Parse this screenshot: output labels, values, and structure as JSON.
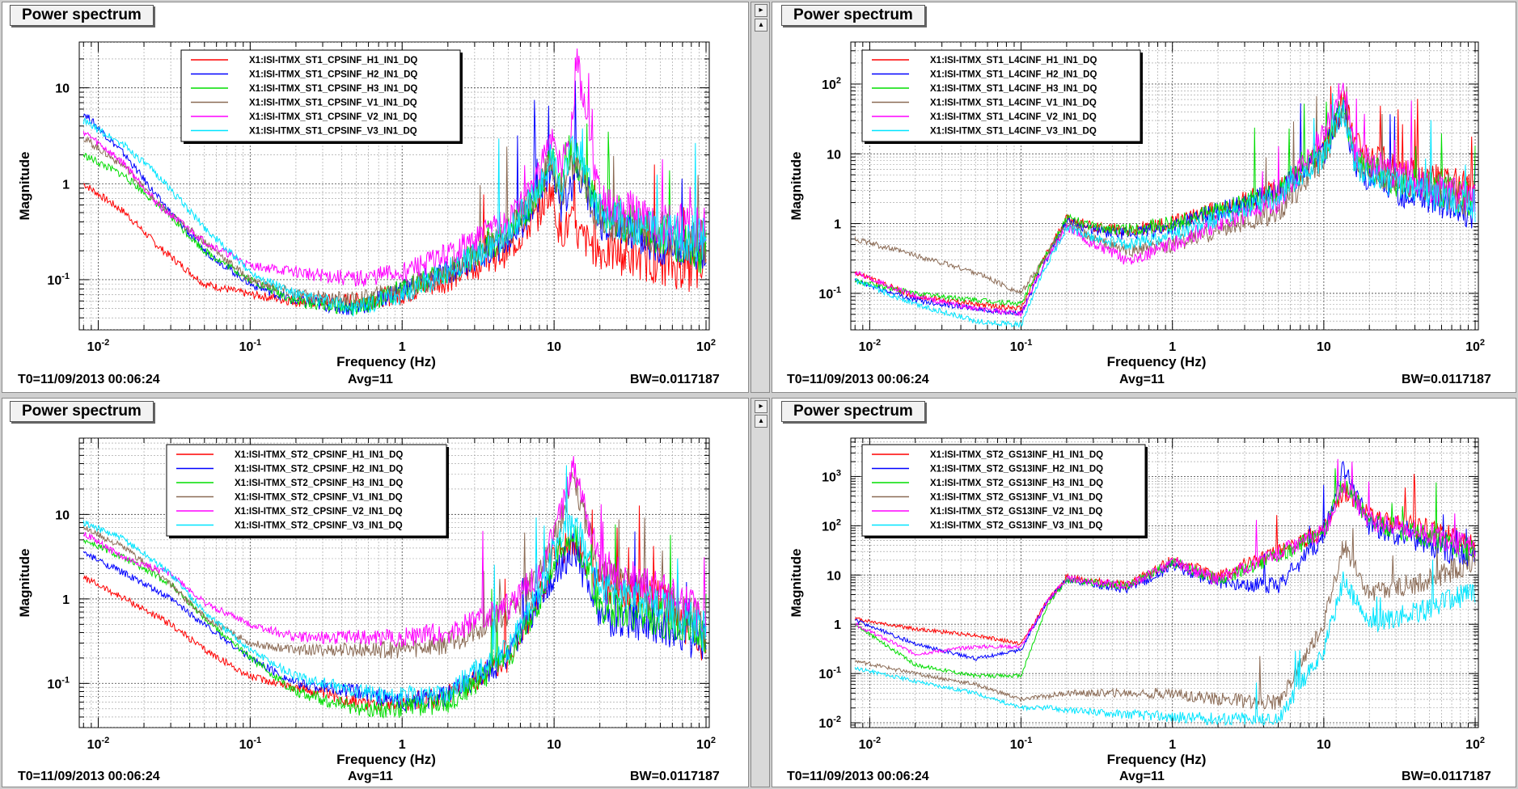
{
  "colors": {
    "red": "#ff0000",
    "blue": "#0000ff",
    "green": "#00dd00",
    "brown": "#8b6b55",
    "magenta": "#ff00ff",
    "cyan": "#00e5ff"
  },
  "common": {
    "x_label": "Frequency (Hz)",
    "y_label": "Magnitude",
    "t0": "T0=11/09/2013 00:06:24",
    "avg": "Avg=11",
    "bw": "BW=0.0117187"
  },
  "split_icons": [
    "arrow-right-icon",
    "arrow-up-icon"
  ],
  "chart_data": [
    {
      "type": "line",
      "title": "Power spectrum",
      "xscale": "log",
      "yscale": "log",
      "xlim": [
        0.0075,
        105
      ],
      "ylim": [
        0.03,
        30
      ],
      "xticks": [
        "10^-2",
        "10^-1",
        "1",
        "10",
        "10^2"
      ],
      "yticks": [
        "10^-1",
        "1",
        "10"
      ],
      "legend": "top-center",
      "series": [
        {
          "name": "X1:ISI-ITMX_ST1_CPSINF_H1_IN1_DQ",
          "color": "red",
          "x": [
            0.008,
            0.015,
            0.025,
            0.05,
            0.1,
            0.2,
            0.5,
            1,
            2,
            5,
            8,
            9.5,
            11,
            13,
            14,
            20,
            50,
            100
          ],
          "y": [
            1.0,
            0.5,
            0.22,
            0.09,
            0.07,
            0.06,
            0.06,
            0.07,
            0.1,
            0.2,
            0.5,
            0.9,
            0.3,
            0.4,
            0.3,
            0.2,
            0.15,
            0.12
          ]
        },
        {
          "name": "X1:ISI-ITMX_ST1_CPSINF_H2_IN1_DQ",
          "color": "blue",
          "x": [
            0.008,
            0.015,
            0.025,
            0.05,
            0.1,
            0.2,
            0.5,
            1,
            2,
            5,
            8,
            9.5,
            11,
            13,
            14,
            20,
            50,
            100
          ],
          "y": [
            5.5,
            2.0,
            0.7,
            0.2,
            0.09,
            0.06,
            0.05,
            0.08,
            0.12,
            0.25,
            0.7,
            1.6,
            0.6,
            1.0,
            1.5,
            0.4,
            0.25,
            0.2
          ]
        },
        {
          "name": "X1:ISI-ITMX_ST1_CPSINF_H3_IN1_DQ",
          "color": "green",
          "x": [
            0.008,
            0.015,
            0.025,
            0.05,
            0.1,
            0.2,
            0.5,
            1,
            2,
            5,
            8,
            9.5,
            11,
            13,
            14,
            20,
            50,
            100
          ],
          "y": [
            2.0,
            1.2,
            0.6,
            0.2,
            0.1,
            0.06,
            0.05,
            0.08,
            0.12,
            0.3,
            0.8,
            2.0,
            0.8,
            2.5,
            1.8,
            0.5,
            0.3,
            0.2
          ]
        },
        {
          "name": "X1:ISI-ITMX_ST1_CPSINF_V1_IN1_DQ",
          "color": "brown",
          "x": [
            0.008,
            0.015,
            0.025,
            0.05,
            0.1,
            0.2,
            0.5,
            1,
            2,
            5,
            8,
            9.5,
            11,
            13,
            14,
            20,
            50,
            100
          ],
          "y": [
            3.0,
            1.5,
            0.6,
            0.25,
            0.1,
            0.07,
            0.06,
            0.08,
            0.12,
            0.3,
            0.9,
            1.8,
            0.7,
            1.5,
            2.0,
            0.4,
            0.3,
            0.25
          ]
        },
        {
          "name": "X1:ISI-ITMX_ST1_CPSINF_V2_IN1_DQ",
          "color": "magenta",
          "x": [
            0.008,
            0.015,
            0.025,
            0.05,
            0.1,
            0.2,
            0.5,
            1,
            2,
            5,
            8,
            9.5,
            11,
            13,
            14,
            20,
            50,
            100
          ],
          "y": [
            3.5,
            1.6,
            0.6,
            0.25,
            0.14,
            0.12,
            0.1,
            0.12,
            0.18,
            0.4,
            1.2,
            3.0,
            1.5,
            3.5,
            20,
            0.7,
            0.4,
            0.3
          ]
        },
        {
          "name": "X1:ISI-ITMX_ST1_CPSINF_V3_IN1_DQ",
          "color": "cyan",
          "x": [
            0.008,
            0.015,
            0.025,
            0.05,
            0.1,
            0.2,
            0.5,
            1,
            2,
            5,
            8,
            9.5,
            11,
            13,
            14,
            20,
            50,
            100
          ],
          "y": [
            4.5,
            2.5,
            1.2,
            0.35,
            0.12,
            0.07,
            0.05,
            0.07,
            0.12,
            0.3,
            0.9,
            2.0,
            0.8,
            2.0,
            2.5,
            0.5,
            0.3,
            0.25
          ]
        }
      ]
    },
    {
      "type": "line",
      "title": "Power spectrum",
      "xscale": "log",
      "yscale": "log",
      "xlim": [
        0.0075,
        105
      ],
      "ylim": [
        0.03,
        400
      ],
      "xticks": [
        "10^-2",
        "10^-1",
        "1",
        "10",
        "10^2"
      ],
      "yticks": [
        "10^-1",
        "1",
        "10",
        "10^2"
      ],
      "legend": "top-center",
      "series": [
        {
          "name": "X1:ISI-ITMX_ST1_L4CINF_H1_IN1_DQ",
          "color": "red",
          "x": [
            0.008,
            0.02,
            0.05,
            0.1,
            0.14,
            0.2,
            0.3,
            0.5,
            1,
            2,
            5,
            10,
            13.5,
            16,
            30,
            60,
            100
          ],
          "y": [
            0.2,
            0.09,
            0.07,
            0.06,
            0.3,
            1.2,
            0.9,
            0.8,
            1.0,
            1.6,
            3.0,
            12,
            60,
            15,
            6,
            4,
            3
          ]
        },
        {
          "name": "X1:ISI-ITMX_ST1_L4CINF_H2_IN1_DQ",
          "color": "blue",
          "x": [
            0.008,
            0.02,
            0.05,
            0.1,
            0.14,
            0.2,
            0.3,
            0.5,
            1,
            2,
            5,
            10,
            13.5,
            16,
            30,
            60,
            100
          ],
          "y": [
            0.15,
            0.08,
            0.06,
            0.05,
            0.25,
            1.1,
            0.8,
            0.7,
            0.9,
            1.5,
            2.8,
            10,
            50,
            6,
            3,
            2,
            1.5
          ]
        },
        {
          "name": "X1:ISI-ITMX_ST1_L4CINF_H3_IN1_DQ",
          "color": "green",
          "x": [
            0.008,
            0.02,
            0.05,
            0.1,
            0.14,
            0.2,
            0.3,
            0.5,
            1,
            2,
            5,
            10,
            13.5,
            16,
            30,
            60,
            100
          ],
          "y": [
            0.15,
            0.1,
            0.08,
            0.07,
            0.3,
            1.2,
            0.9,
            0.8,
            1.0,
            1.5,
            2.8,
            11,
            55,
            8,
            4,
            3,
            2
          ]
        },
        {
          "name": "X1:ISI-ITMX_ST1_L4CINF_V1_IN1_DQ",
          "color": "brown",
          "x": [
            0.008,
            0.02,
            0.05,
            0.1,
            0.14,
            0.2,
            0.3,
            0.5,
            1,
            2,
            5,
            10,
            13.5,
            16,
            30,
            60,
            100
          ],
          "y": [
            0.6,
            0.35,
            0.2,
            0.1,
            0.3,
            1.0,
            0.6,
            0.4,
            0.5,
            0.8,
            1.5,
            8,
            40,
            8,
            4,
            3,
            2
          ]
        },
        {
          "name": "X1:ISI-ITMX_ST1_L4CINF_V2_IN1_DQ",
          "color": "magenta",
          "x": [
            0.008,
            0.02,
            0.05,
            0.1,
            0.14,
            0.2,
            0.3,
            0.5,
            1,
            2,
            5,
            10,
            13.5,
            16,
            30,
            60,
            100
          ],
          "y": [
            0.2,
            0.09,
            0.06,
            0.05,
            0.25,
            0.9,
            0.5,
            0.3,
            0.5,
            1.0,
            2.0,
            20,
            100,
            10,
            5,
            3,
            2
          ]
        },
        {
          "name": "X1:ISI-ITMX_ST1_L4CINF_V3_IN1_DQ",
          "color": "cyan",
          "x": [
            0.008,
            0.02,
            0.05,
            0.1,
            0.14,
            0.2,
            0.3,
            0.5,
            1,
            2,
            5,
            10,
            13.5,
            16,
            30,
            60,
            100
          ],
          "y": [
            0.15,
            0.07,
            0.04,
            0.035,
            0.2,
            0.9,
            0.6,
            0.5,
            0.7,
            1.2,
            2.5,
            9,
            45,
            7,
            3.5,
            2.5,
            1.8
          ]
        }
      ]
    },
    {
      "type": "line",
      "title": "Power spectrum",
      "xscale": "log",
      "yscale": "log",
      "xlim": [
        0.0075,
        105
      ],
      "ylim": [
        0.03,
        80
      ],
      "xticks": [
        "10^-2",
        "10^-1",
        "1",
        "10",
        "10^2"
      ],
      "yticks": [
        "10^-1",
        "1",
        "10"
      ],
      "legend": "top-center",
      "series": [
        {
          "name": "X1:ISI-ITMX_ST2_CPSINF_H1_IN1_DQ",
          "color": "red",
          "x": [
            0.008,
            0.015,
            0.03,
            0.05,
            0.1,
            0.2,
            0.5,
            1,
            2,
            5,
            8,
            10,
            13.5,
            20,
            50,
            100
          ],
          "y": [
            1.8,
            1.0,
            0.5,
            0.25,
            0.12,
            0.09,
            0.06,
            0.06,
            0.07,
            0.2,
            1.0,
            3.0,
            5.0,
            1.5,
            1.0,
            0.3
          ]
        },
        {
          "name": "X1:ISI-ITMX_ST2_CPSINF_H2_IN1_DQ",
          "color": "blue",
          "x": [
            0.008,
            0.015,
            0.03,
            0.05,
            0.1,
            0.2,
            0.5,
            1,
            2,
            5,
            8,
            10,
            13.5,
            20,
            50,
            100
          ],
          "y": [
            3.5,
            2.0,
            1.0,
            0.5,
            0.2,
            0.1,
            0.08,
            0.06,
            0.07,
            0.2,
            1.0,
            2.0,
            4.0,
            0.6,
            0.5,
            0.3
          ]
        },
        {
          "name": "X1:ISI-ITMX_ST2_CPSINF_H3_IN1_DQ",
          "color": "green",
          "x": [
            0.008,
            0.015,
            0.03,
            0.05,
            0.1,
            0.2,
            0.5,
            1,
            2,
            5,
            8,
            10,
            13.5,
            20,
            50,
            100
          ],
          "y": [
            5.0,
            3.0,
            1.5,
            0.6,
            0.2,
            0.08,
            0.05,
            0.05,
            0.06,
            0.2,
            1.0,
            3.0,
            6.0,
            0.8,
            0.6,
            0.4
          ]
        },
        {
          "name": "X1:ISI-ITMX_ST2_CPSINF_V1_IN1_DQ",
          "color": "brown",
          "x": [
            0.008,
            0.015,
            0.03,
            0.05,
            0.1,
            0.2,
            0.5,
            1,
            2,
            5,
            8,
            10,
            13.5,
            20,
            50,
            100
          ],
          "y": [
            7.0,
            4.0,
            1.5,
            0.6,
            0.3,
            0.25,
            0.25,
            0.25,
            0.3,
            0.6,
            2.0,
            5.0,
            30,
            2.0,
            1.0,
            0.5
          ]
        },
        {
          "name": "X1:ISI-ITMX_ST2_CPSINF_V2_IN1_DQ",
          "color": "magenta",
          "x": [
            0.008,
            0.015,
            0.03,
            0.05,
            0.1,
            0.2,
            0.5,
            1,
            2,
            5,
            8,
            10,
            13.5,
            20,
            50,
            100
          ],
          "y": [
            6.0,
            3.0,
            2.0,
            0.9,
            0.5,
            0.35,
            0.35,
            0.35,
            0.4,
            0.8,
            2.0,
            6.0,
            40,
            2.5,
            1.2,
            0.6
          ]
        },
        {
          "name": "X1:ISI-ITMX_ST2_CPSINF_V3_IN1_DQ",
          "color": "cyan",
          "x": [
            0.008,
            0.015,
            0.03,
            0.05,
            0.1,
            0.2,
            0.5,
            1,
            2,
            5,
            8,
            10,
            13.5,
            20,
            50,
            100
          ],
          "y": [
            8.0,
            5.0,
            2.0,
            0.7,
            0.25,
            0.12,
            0.08,
            0.07,
            0.08,
            0.25,
            1.2,
            4.0,
            8.0,
            1.5,
            0.8,
            0.4
          ]
        }
      ]
    },
    {
      "type": "line",
      "title": "Power spectrum",
      "xscale": "log",
      "yscale": "log",
      "xlim": [
        0.0075,
        105
      ],
      "ylim": [
        0.008,
        6000
      ],
      "xticks": [
        "10^-2",
        "10^-1",
        "1",
        "10",
        "10^2"
      ],
      "yticks": [
        "10^-2",
        "10^-1",
        "1",
        "10",
        "10^2",
        "10^3"
      ],
      "legend": "top-left",
      "series": [
        {
          "name": "X1:ISI-ITMX_ST2_GS13INF_H1_IN1_DQ",
          "color": "red",
          "x": [
            0.008,
            0.02,
            0.05,
            0.1,
            0.15,
            0.2,
            0.5,
            1,
            2,
            5,
            10,
            13.5,
            20,
            50,
            100
          ],
          "y": [
            1.3,
            0.8,
            0.6,
            0.4,
            3.0,
            9.0,
            6.0,
            20,
            9.0,
            30,
            80,
            500,
            150,
            80,
            40
          ]
        },
        {
          "name": "X1:ISI-ITMX_ST2_GS13INF_H2_IN1_DQ",
          "color": "blue",
          "x": [
            0.008,
            0.02,
            0.05,
            0.1,
            0.15,
            0.2,
            0.5,
            1,
            2,
            5,
            10,
            13.5,
            20,
            50,
            100
          ],
          "y": [
            1.2,
            0.4,
            0.2,
            0.3,
            3.0,
            8.0,
            5.0,
            15,
            7.0,
            6.0,
            60,
            1500,
            100,
            40,
            20
          ]
        },
        {
          "name": "X1:ISI-ITMX_ST2_GS13INF_H3_IN1_DQ",
          "color": "green",
          "x": [
            0.008,
            0.02,
            0.05,
            0.1,
            0.15,
            0.2,
            0.5,
            1,
            2,
            5,
            10,
            13.5,
            20,
            50,
            100
          ],
          "y": [
            1.0,
            0.15,
            0.09,
            0.09,
            2.5,
            8.0,
            6.0,
            18,
            8.0,
            25,
            70,
            800,
            120,
            60,
            30
          ]
        },
        {
          "name": "X1:ISI-ITMX_ST2_GS13INF_V1_IN1_DQ",
          "color": "brown",
          "x": [
            0.008,
            0.02,
            0.05,
            0.1,
            0.15,
            0.2,
            0.5,
            1,
            2,
            5,
            10,
            13.5,
            20,
            50,
            100
          ],
          "y": [
            0.18,
            0.1,
            0.06,
            0.03,
            0.035,
            0.04,
            0.04,
            0.04,
            0.03,
            0.025,
            1.0,
            40,
            4.0,
            8.0,
            20
          ]
        },
        {
          "name": "X1:ISI-ITMX_ST2_GS13INF_V2_IN1_DQ",
          "color": "magenta",
          "x": [
            0.008,
            0.02,
            0.05,
            0.1,
            0.15,
            0.2,
            0.5,
            1,
            2,
            5,
            10,
            13.5,
            20,
            50,
            100
          ],
          "y": [
            1.0,
            0.25,
            0.35,
            0.35,
            3.0,
            8.5,
            6.0,
            18,
            8.0,
            28,
            75,
            700,
            130,
            70,
            35
          ]
        },
        {
          "name": "X1:ISI-ITMX_ST2_GS13INF_V3_IN1_DQ",
          "color": "cyan",
          "x": [
            0.008,
            0.02,
            0.05,
            0.1,
            0.15,
            0.2,
            0.5,
            1,
            2,
            5,
            10,
            13.5,
            20,
            50,
            100
          ],
          "y": [
            0.13,
            0.07,
            0.04,
            0.02,
            0.02,
            0.018,
            0.015,
            0.013,
            0.012,
            0.012,
            0.3,
            8.0,
            1.0,
            2.0,
            5.0
          ]
        }
      ]
    }
  ]
}
